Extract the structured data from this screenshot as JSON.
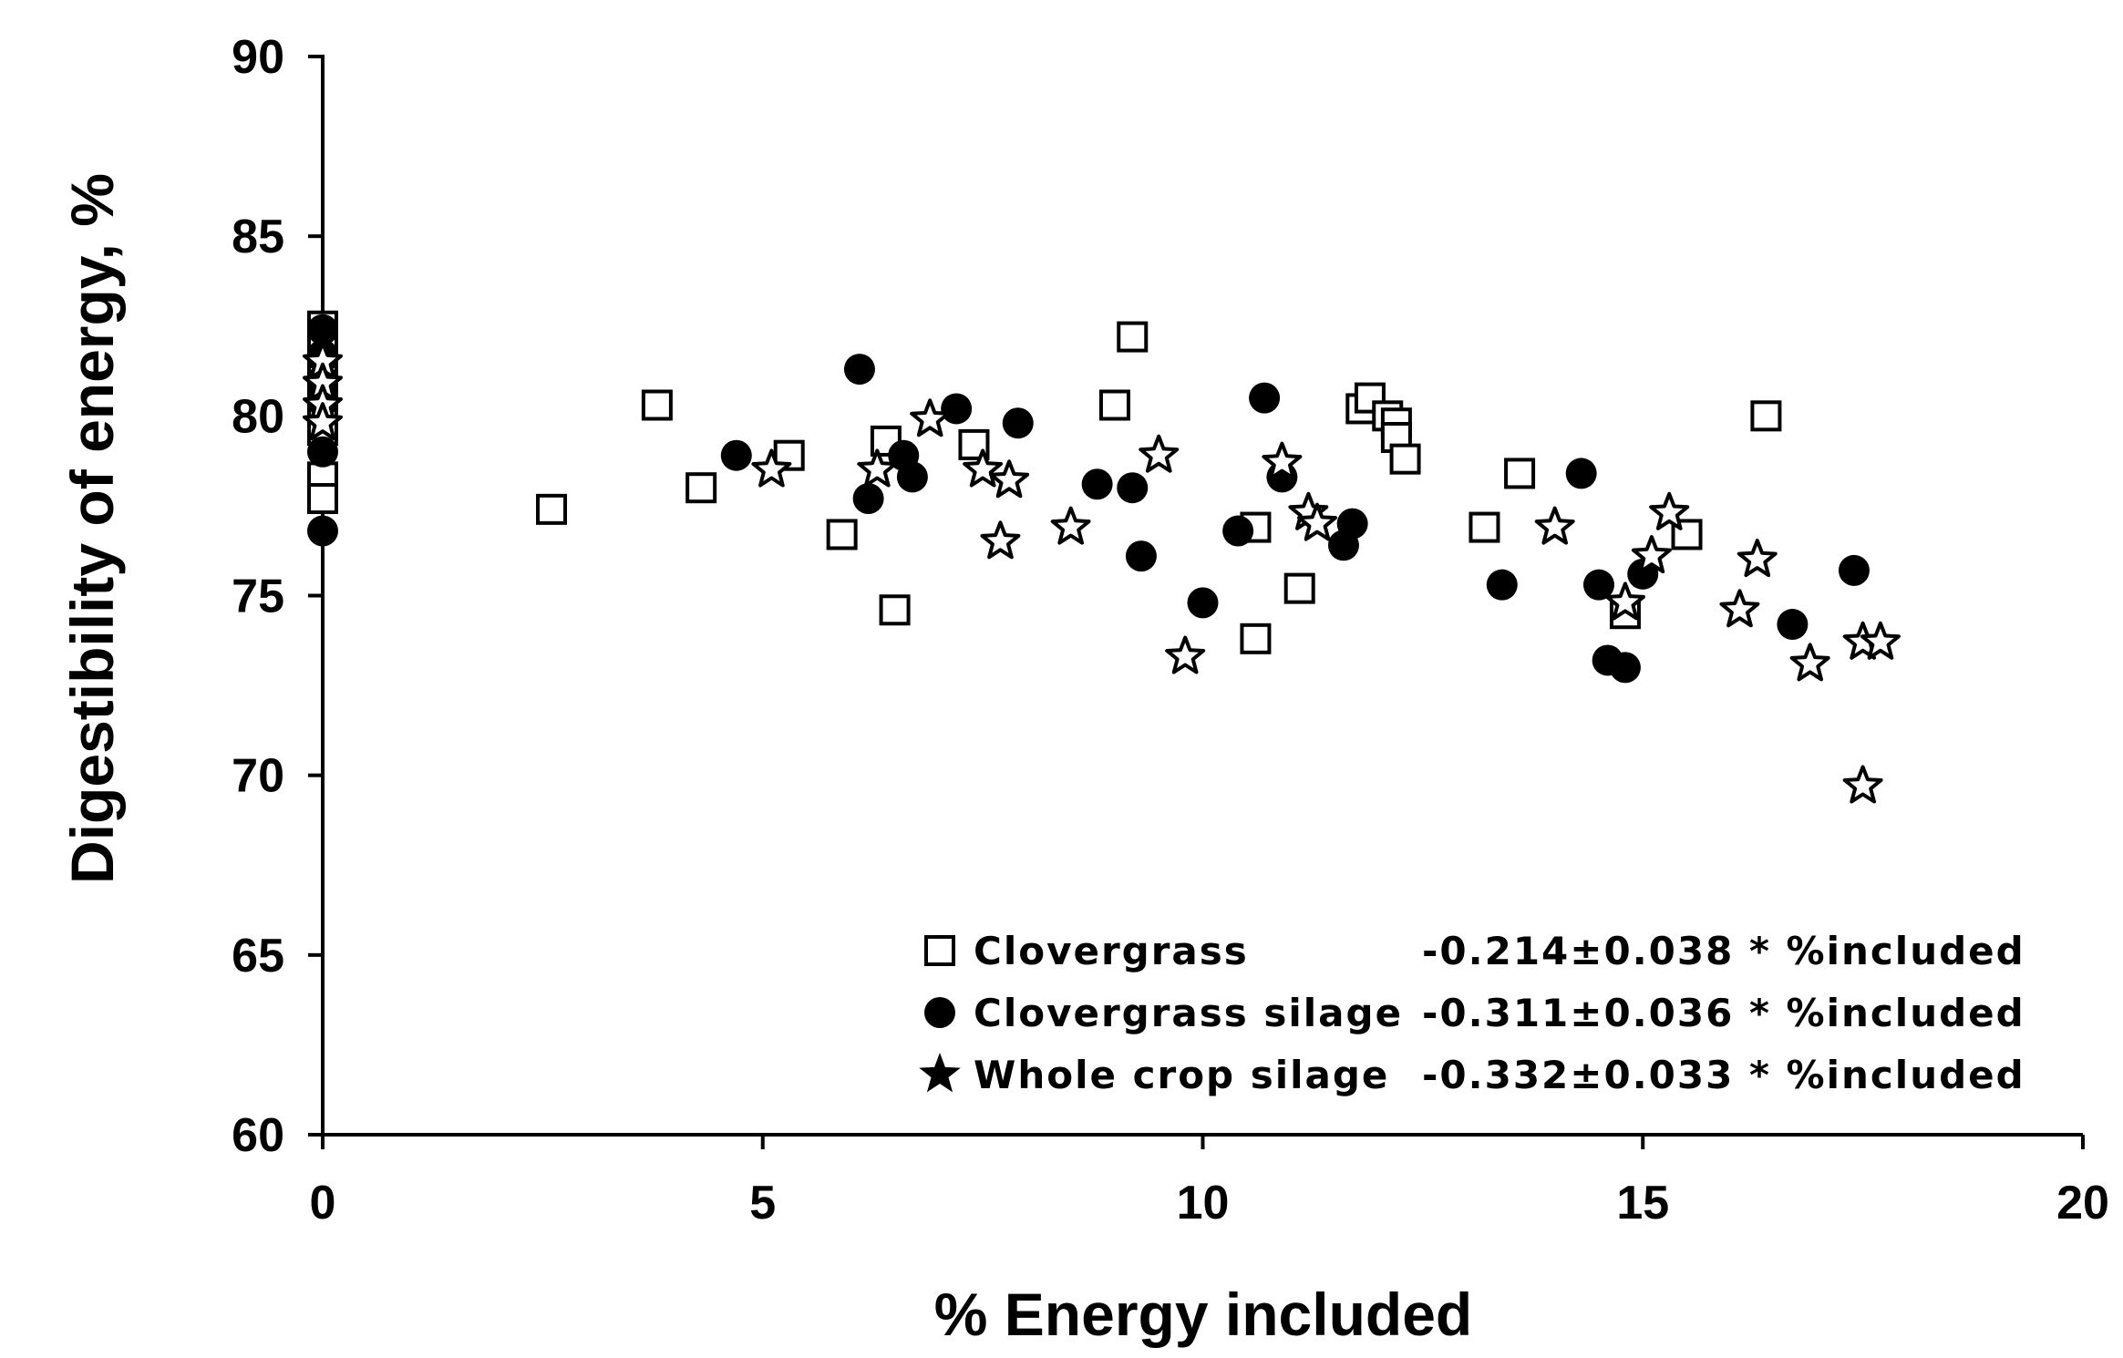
{
  "chart_data": {
    "type": "scatter",
    "title": "",
    "xlabel": "% Energy included",
    "ylabel": "Digestibility of energy, %",
    "xlim": [
      0,
      20
    ],
    "ylim": [
      60,
      90
    ],
    "xticks": [
      "0",
      "5",
      "10",
      "15",
      "20"
    ],
    "yticks": [
      "60",
      "65",
      "70",
      "75",
      "80",
      "85",
      "90"
    ],
    "grid": false,
    "legend_position": "bottom-right",
    "series": [
      {
        "name": "Clovergrass",
        "equation": "-0.214±0.038 * %included",
        "marker": "open-square",
        "points": [
          [
            0,
            82.5
          ],
          [
            0,
            81.8
          ],
          [
            0,
            81.0
          ],
          [
            0,
            80.3
          ],
          [
            0,
            79.6
          ],
          [
            0,
            78.3
          ],
          [
            0,
            77.7
          ],
          [
            2.6,
            77.4
          ],
          [
            3.8,
            80.3
          ],
          [
            4.3,
            78.0
          ],
          [
            5.3,
            78.9
          ],
          [
            5.9,
            76.7
          ],
          [
            6.4,
            79.3
          ],
          [
            6.5,
            74.6
          ],
          [
            7.4,
            79.2
          ],
          [
            9.0,
            80.3
          ],
          [
            9.2,
            82.2
          ],
          [
            10.6,
            76.9
          ],
          [
            10.6,
            73.8
          ],
          [
            11.1,
            75.2
          ],
          [
            11.8,
            80.2
          ],
          [
            11.9,
            80.5
          ],
          [
            12.1,
            80.0
          ],
          [
            12.2,
            79.8
          ],
          [
            12.2,
            79.4
          ],
          [
            12.3,
            78.8
          ],
          [
            13.2,
            76.9
          ],
          [
            13.6,
            78.4
          ],
          [
            14.8,
            74.5
          ],
          [
            15.5,
            76.7
          ],
          [
            16.4,
            80.0
          ]
        ]
      },
      {
        "name": "Clovergrass silage",
        "equation": "-0.311±0.036 * %included",
        "marker": "filled-circle",
        "points": [
          [
            0,
            82.4
          ],
          [
            0,
            81.7
          ],
          [
            0,
            81.0
          ],
          [
            0,
            80.4
          ],
          [
            0,
            79.0
          ],
          [
            0,
            76.8
          ],
          [
            4.7,
            78.9
          ],
          [
            6.1,
            81.3
          ],
          [
            6.2,
            77.7
          ],
          [
            6.6,
            78.9
          ],
          [
            6.7,
            78.3
          ],
          [
            7.2,
            80.2
          ],
          [
            7.9,
            79.8
          ],
          [
            8.8,
            78.1
          ],
          [
            9.2,
            78.0
          ],
          [
            9.3,
            76.1
          ],
          [
            10.0,
            74.8
          ],
          [
            10.4,
            76.8
          ],
          [
            10.7,
            80.5
          ],
          [
            10.9,
            78.3
          ],
          [
            11.6,
            76.4
          ],
          [
            11.7,
            77.0
          ],
          [
            13.4,
            75.3
          ],
          [
            14.3,
            78.4
          ],
          [
            14.5,
            75.3
          ],
          [
            14.6,
            73.2
          ],
          [
            14.8,
            73.0
          ],
          [
            15.0,
            75.6
          ],
          [
            16.7,
            74.2
          ],
          [
            17.4,
            75.7
          ]
        ]
      },
      {
        "name": "Whole crop silage",
        "equation": "-0.332±0.033 * %included",
        "marker": "star",
        "points": [
          [
            0,
            81.5
          ],
          [
            0,
            80.9
          ],
          [
            0,
            80.3
          ],
          [
            0,
            79.8
          ],
          [
            5.1,
            78.5
          ],
          [
            6.3,
            78.5
          ],
          [
            6.9,
            79.9
          ],
          [
            7.5,
            78.5
          ],
          [
            7.7,
            76.5
          ],
          [
            7.8,
            78.2
          ],
          [
            8.5,
            76.9
          ],
          [
            9.5,
            78.9
          ],
          [
            9.8,
            73.3
          ],
          [
            10.9,
            78.7
          ],
          [
            11.2,
            77.3
          ],
          [
            11.3,
            77.0
          ],
          [
            14.0,
            76.9
          ],
          [
            14.8,
            74.8
          ],
          [
            15.1,
            76.1
          ],
          [
            15.3,
            77.3
          ],
          [
            16.1,
            74.6
          ],
          [
            16.3,
            76.0
          ],
          [
            16.9,
            73.1
          ],
          [
            17.5,
            73.7
          ],
          [
            17.7,
            73.7
          ],
          [
            17.5,
            69.7
          ]
        ]
      }
    ]
  },
  "colors": {
    "axis": "#000000",
    "marker_fill": "#000000",
    "marker_open": "#ffffff",
    "background": "#ffffff"
  }
}
